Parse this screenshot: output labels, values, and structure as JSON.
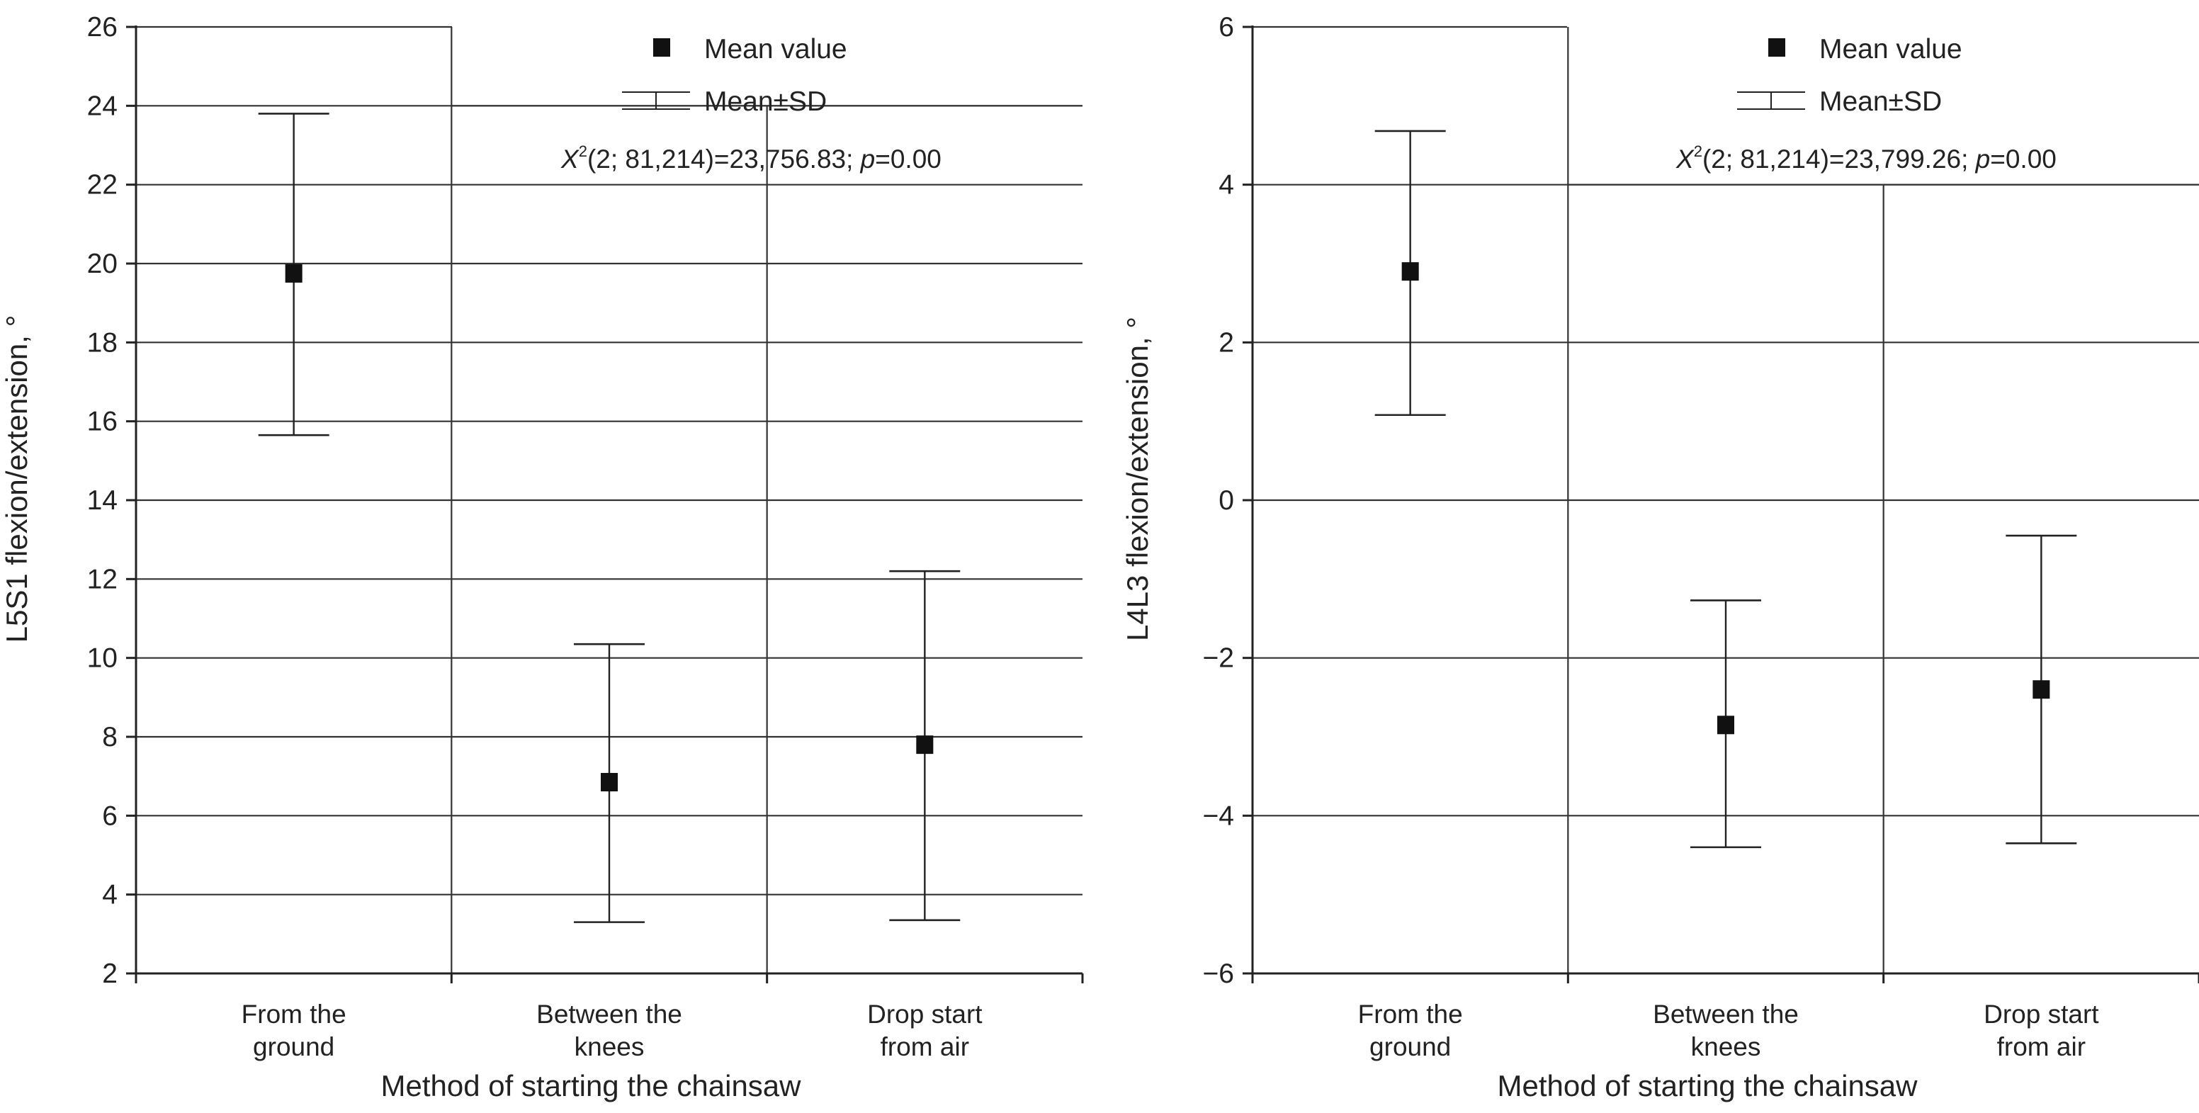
{
  "chart_data": [
    {
      "type": "scatter",
      "error_bars": "Mean±SD",
      "categories": [
        "From the\nground",
        "Between the\nknees",
        "Drop start\nfrom air"
      ],
      "mean": [
        19.75,
        6.85,
        7.8
      ],
      "sd_low": [
        15.65,
        3.3,
        3.35
      ],
      "sd_high": [
        23.8,
        10.35,
        12.2
      ],
      "ylabel": "L5S1 flexion/extension, °",
      "xlabel": "Method of starting the chainsaw",
      "ylim": [
        2,
        26
      ],
      "yticks": [
        2,
        4,
        6,
        8,
        10,
        12,
        14,
        16,
        18,
        20,
        22,
        24,
        26
      ],
      "ytick_labels": [
        "2",
        "4",
        "6",
        "8",
        "10",
        "12",
        "14",
        "16",
        "18",
        "20",
        "22",
        "24",
        "26"
      ],
      "legend": {
        "placement": "top-right",
        "mean_label": "Mean value",
        "sd_label": "Mean±SD"
      },
      "stat": {
        "prefix": "X",
        "sup": "2",
        "middle": "(2; 81,214)=23,756.83; ",
        "p": "p",
        "suffix": "=0.00"
      },
      "grid": true
    },
    {
      "type": "scatter",
      "error_bars": "Mean±SD",
      "categories": [
        "From the\nground",
        "Between the\nknees",
        "Drop start\nfrom air"
      ],
      "mean": [
        2.9,
        -2.85,
        -2.4
      ],
      "sd_low": [
        1.08,
        -4.4,
        -4.35
      ],
      "sd_high": [
        4.68,
        -1.27,
        -0.45
      ],
      "ylabel": "L4L3 flexion/extension, °",
      "xlabel": "Method of starting the chainsaw",
      "ylim": [
        -6,
        6
      ],
      "yticks": [
        -6,
        -4,
        -2,
        0,
        2,
        4,
        6
      ],
      "ytick_labels": [
        "−6",
        "−4",
        "−2",
        "0",
        "2",
        "4",
        "6"
      ],
      "legend": {
        "placement": "top-right",
        "mean_label": "Mean value",
        "sd_label": "Mean±SD"
      },
      "stat": {
        "prefix": "X",
        "sup": "2",
        "middle": "(2; 81,214)=23,799.26; ",
        "p": "p",
        "suffix": "=0.00"
      },
      "grid": true
    }
  ]
}
